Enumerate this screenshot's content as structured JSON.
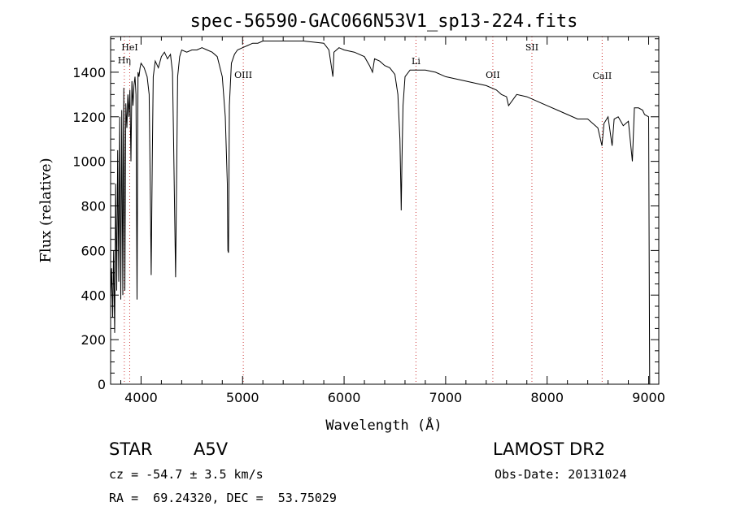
{
  "chart_data": {
    "type": "line",
    "title": "spec-56590-GAC066N53V1_sp13-224.fits",
    "xlabel": "Wavelength (Å)",
    "ylabel": "Flux (relative)",
    "xlim": [
      3700,
      9100
    ],
    "ylim": [
      0,
      1560
    ],
    "x_ticks": [
      4000,
      5000,
      6000,
      7000,
      8000,
      9000
    ],
    "y_ticks": [
      0,
      200,
      400,
      600,
      800,
      1000,
      1200,
      1400
    ],
    "x_tick_labels": [
      "4000",
      "5000",
      "6000",
      "7000",
      "8000",
      "9000"
    ],
    "y_tick_labels": [
      "0",
      "200",
      "400",
      "600",
      "800",
      "1000",
      "1200",
      "1400"
    ],
    "line_color": "#000000",
    "marker_color": "#cc3333",
    "grid": false,
    "series": [
      {
        "x": [
          3700,
          3710,
          3720,
          3730,
          3740,
          3750,
          3760,
          3770,
          3780,
          3790,
          3800,
          3810,
          3820,
          3830,
          3840,
          3850,
          3860,
          3870,
          3880,
          3890,
          3900,
          3910,
          3920,
          3930,
          3940,
          3950,
          3960,
          3970,
          3980,
          3990,
          4000,
          4030,
          4060,
          4080,
          4090,
          4100,
          4110,
          4120,
          4140,
          4170,
          4200,
          4230,
          4260,
          4290,
          4310,
          4320,
          4330,
          4340,
          4350,
          4360,
          4380,
          4400,
          4450,
          4500,
          4550,
          4600,
          4650,
          4700,
          4750,
          4800,
          4830,
          4850,
          4855,
          4861,
          4866,
          4870,
          4890,
          4920,
          4950,
          5000,
          5050,
          5100,
          5150,
          5200,
          5300,
          5400,
          5500,
          5600,
          5700,
          5800,
          5850,
          5890,
          5900,
          5950,
          6000,
          6100,
          6200,
          6250,
          6280,
          6300,
          6350,
          6400,
          6450,
          6500,
          6530,
          6550,
          6560,
          6563,
          6570,
          6580,
          6600,
          6650,
          6700,
          6800,
          6900,
          7000,
          7100,
          7200,
          7300,
          7400,
          7500,
          7550,
          7600,
          7620,
          7700,
          7800,
          7900,
          8000,
          8100,
          8200,
          8300,
          8400,
          8500,
          8540,
          8560,
          8600,
          8640,
          8660,
          8700,
          8750,
          8800,
          8840,
          8860,
          8900,
          8940,
          8960,
          9000,
          9010
        ],
        "y": [
          380,
          520,
          300,
          600,
          230,
          900,
          420,
          1050,
          460,
          1200,
          380,
          1230,
          400,
          1330,
          420,
          1260,
          1150,
          1300,
          1200,
          1320,
          1000,
          1360,
          1250,
          1340,
          1380,
          1300,
          380,
          1400,
          1380,
          1420,
          1440,
          1420,
          1380,
          1300,
          900,
          490,
          1000,
          1380,
          1450,
          1420,
          1470,
          1490,
          1460,
          1480,
          1400,
          1100,
          800,
          480,
          900,
          1380,
          1470,
          1500,
          1490,
          1500,
          1500,
          1510,
          1500,
          1490,
          1470,
          1380,
          1200,
          900,
          600,
          590,
          900,
          1250,
          1440,
          1480,
          1500,
          1510,
          1520,
          1530,
          1530,
          1540,
          1540,
          1540,
          1540,
          1540,
          1535,
          1530,
          1500,
          1380,
          1490,
          1510,
          1500,
          1490,
          1470,
          1430,
          1400,
          1460,
          1450,
          1430,
          1420,
          1390,
          1300,
          1100,
          850,
          780,
          1000,
          1250,
          1380,
          1410,
          1410,
          1410,
          1400,
          1380,
          1370,
          1360,
          1350,
          1340,
          1320,
          1300,
          1290,
          1250,
          1300,
          1290,
          1270,
          1250,
          1230,
          1210,
          1190,
          1190,
          1150,
          1070,
          1170,
          1200,
          1070,
          1190,
          1200,
          1160,
          1180,
          1000,
          1240,
          1240,
          1230,
          1210,
          1200,
          0
        ]
      }
    ],
    "line_markers": [
      {
        "x": 3888,
        "label": "HeI",
        "label_top": true
      },
      {
        "x": 3835,
        "label": "Hη",
        "label_top": true
      },
      {
        "x": 5007,
        "label": "OIII",
        "label_top": false
      },
      {
        "x": 6708,
        "label": "Li",
        "label_top": false
      },
      {
        "x": 7465,
        "label": "OII",
        "label_top": false
      },
      {
        "x": 7850,
        "label": "SII",
        "label_top": true
      },
      {
        "x": 8542,
        "label": "CaII",
        "label_top": false
      }
    ]
  },
  "info": {
    "object_class": "STAR",
    "subclass": "A5V",
    "survey": "LAMOST DR2",
    "redshift_text": "cz = -54.7 ± 3.5 km/s",
    "obs_date_text": "Obs-Date: 20131024",
    "coords_text": "RA =  69.24320, DEC =  53.75029"
  }
}
